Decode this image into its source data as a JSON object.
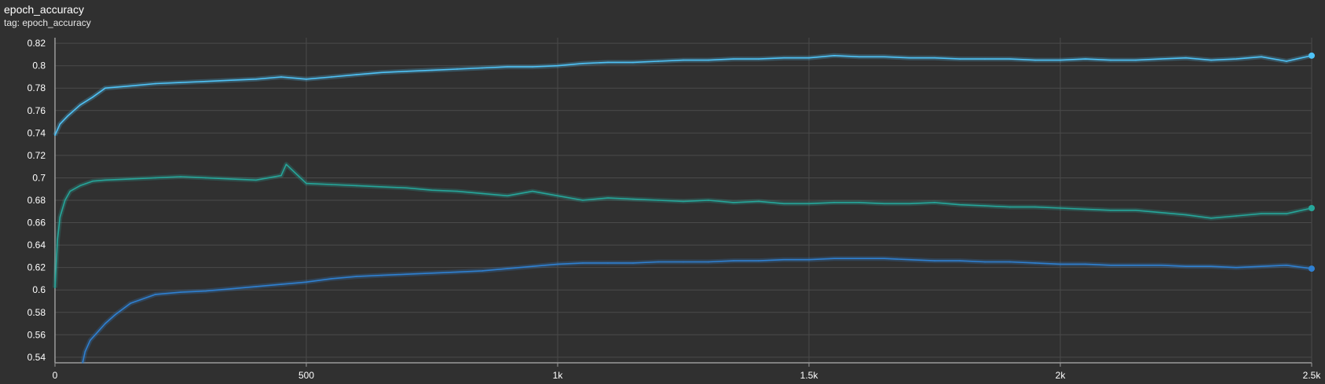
{
  "header": {
    "title": "epoch_accuracy",
    "subtitle": "tag: epoch_accuracy"
  },
  "colors": {
    "background": "#303030",
    "grid": "#4a4a4a",
    "axis": "#9a9a9a"
  },
  "chart_data": {
    "type": "line",
    "title": "epoch_accuracy",
    "xlim": [
      0,
      2500
    ],
    "ylim": [
      0.535,
      0.825
    ],
    "x_ticks": [
      {
        "value": 0,
        "label": "0"
      },
      {
        "value": 500,
        "label": "500"
      },
      {
        "value": 1000,
        "label": "1k"
      },
      {
        "value": 1500,
        "label": "1.5k"
      },
      {
        "value": 2000,
        "label": "2k"
      },
      {
        "value": 2500,
        "label": "2.5k"
      }
    ],
    "y_ticks": [
      {
        "value": 0.54,
        "label": "0.54"
      },
      {
        "value": 0.56,
        "label": "0.56"
      },
      {
        "value": 0.58,
        "label": "0.58"
      },
      {
        "value": 0.6,
        "label": "0.6"
      },
      {
        "value": 0.62,
        "label": "0.62"
      },
      {
        "value": 0.64,
        "label": "0.64"
      },
      {
        "value": 0.66,
        "label": "0.66"
      },
      {
        "value": 0.68,
        "label": "0.68"
      },
      {
        "value": 0.7,
        "label": "0.7"
      },
      {
        "value": 0.72,
        "label": "0.72"
      },
      {
        "value": 0.74,
        "label": "0.74"
      },
      {
        "value": 0.76,
        "label": "0.76"
      },
      {
        "value": 0.78,
        "label": "0.78"
      },
      {
        "value": 0.8,
        "label": "0.8"
      },
      {
        "value": 0.82,
        "label": "0.82"
      }
    ],
    "grid": true,
    "series": [
      {
        "color": "#4fc3f7",
        "x": [
          0,
          10,
          25,
          50,
          75,
          100,
          150,
          200,
          250,
          300,
          350,
          400,
          450,
          500,
          550,
          600,
          650,
          700,
          750,
          800,
          850,
          900,
          950,
          1000,
          1050,
          1100,
          1150,
          1200,
          1250,
          1300,
          1350,
          1400,
          1450,
          1500,
          1550,
          1600,
          1650,
          1700,
          1750,
          1800,
          1850,
          1900,
          1950,
          2000,
          2050,
          2100,
          2150,
          2200,
          2250,
          2300,
          2350,
          2400,
          2450,
          2500
        ],
        "values": [
          0.738,
          0.748,
          0.755,
          0.765,
          0.772,
          0.78,
          0.782,
          0.784,
          0.785,
          0.786,
          0.787,
          0.788,
          0.79,
          0.788,
          0.79,
          0.792,
          0.794,
          0.795,
          0.796,
          0.797,
          0.798,
          0.799,
          0.799,
          0.8,
          0.802,
          0.803,
          0.803,
          0.804,
          0.805,
          0.805,
          0.806,
          0.806,
          0.807,
          0.807,
          0.809,
          0.808,
          0.808,
          0.807,
          0.807,
          0.806,
          0.806,
          0.806,
          0.805,
          0.805,
          0.806,
          0.805,
          0.805,
          0.806,
          0.807,
          0.805,
          0.806,
          0.808,
          0.804,
          0.809
        ]
      },
      {
        "color": "#26a69a",
        "x": [
          0,
          5,
          10,
          20,
          30,
          50,
          75,
          100,
          150,
          200,
          250,
          300,
          350,
          400,
          450,
          460,
          500,
          550,
          600,
          650,
          700,
          750,
          800,
          850,
          900,
          950,
          1000,
          1050,
          1100,
          1150,
          1200,
          1250,
          1300,
          1350,
          1400,
          1450,
          1500,
          1550,
          1600,
          1650,
          1700,
          1750,
          1800,
          1850,
          1900,
          1950,
          2000,
          2050,
          2100,
          2150,
          2200,
          2250,
          2300,
          2350,
          2400,
          2450,
          2500
        ],
        "values": [
          0.602,
          0.645,
          0.665,
          0.68,
          0.688,
          0.693,
          0.697,
          0.698,
          0.699,
          0.7,
          0.701,
          0.7,
          0.699,
          0.698,
          0.702,
          0.712,
          0.695,
          0.694,
          0.693,
          0.692,
          0.691,
          0.689,
          0.688,
          0.686,
          0.684,
          0.688,
          0.684,
          0.68,
          0.682,
          0.681,
          0.68,
          0.679,
          0.68,
          0.678,
          0.679,
          0.677,
          0.677,
          0.678,
          0.678,
          0.677,
          0.677,
          0.678,
          0.676,
          0.675,
          0.674,
          0.674,
          0.673,
          0.672,
          0.671,
          0.671,
          0.669,
          0.667,
          0.664,
          0.666,
          0.668,
          0.668,
          0.673
        ]
      },
      {
        "color": "#2f80d1",
        "x": [
          55,
          60,
          70,
          80,
          100,
          120,
          150,
          200,
          250,
          300,
          350,
          400,
          450,
          500,
          550,
          600,
          650,
          700,
          750,
          800,
          850,
          900,
          950,
          1000,
          1050,
          1100,
          1150,
          1200,
          1250,
          1300,
          1350,
          1400,
          1450,
          1500,
          1550,
          1600,
          1650,
          1700,
          1750,
          1800,
          1850,
          1900,
          1950,
          2000,
          2050,
          2100,
          2150,
          2200,
          2250,
          2300,
          2350,
          2400,
          2450,
          2500
        ],
        "values": [
          0.535,
          0.545,
          0.555,
          0.56,
          0.57,
          0.578,
          0.588,
          0.596,
          0.598,
          0.599,
          0.601,
          0.603,
          0.605,
          0.607,
          0.61,
          0.612,
          0.613,
          0.614,
          0.615,
          0.616,
          0.617,
          0.619,
          0.621,
          0.623,
          0.624,
          0.624,
          0.624,
          0.625,
          0.625,
          0.625,
          0.626,
          0.626,
          0.627,
          0.627,
          0.628,
          0.628,
          0.628,
          0.627,
          0.626,
          0.626,
          0.625,
          0.625,
          0.624,
          0.623,
          0.623,
          0.622,
          0.622,
          0.622,
          0.621,
          0.621,
          0.62,
          0.621,
          0.622,
          0.619
        ]
      }
    ]
  }
}
